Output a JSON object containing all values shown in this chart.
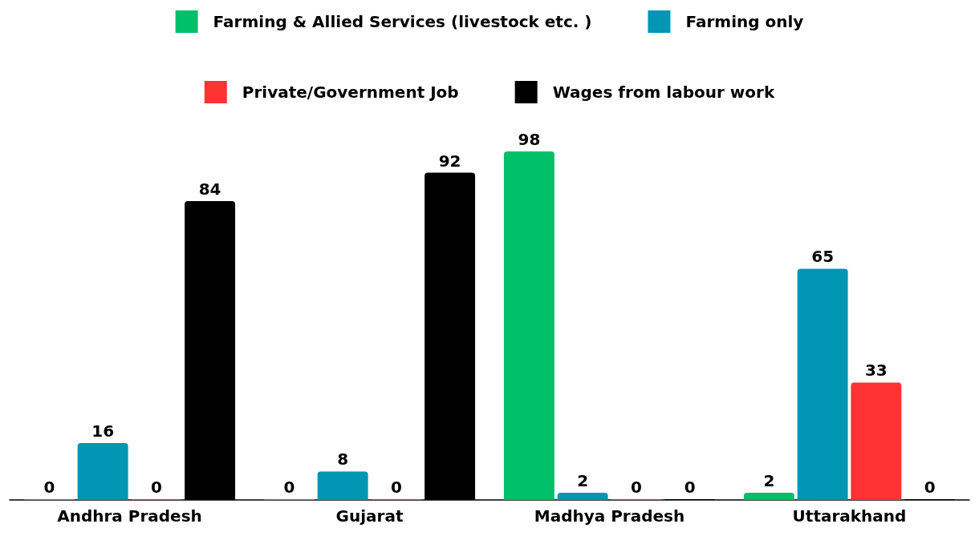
{
  "chart_data": {
    "type": "bar",
    "categories": [
      "Andhra Pradesh",
      "Gujarat",
      "Madhya Pradesh",
      "Uttarakhand"
    ],
    "series": [
      {
        "name": "Farming & Allied Services (livestock etc. )",
        "color": "#00c06a",
        "values": [
          0,
          0,
          98,
          2
        ]
      },
      {
        "name": "Farming only",
        "color": "#0096b4",
        "values": [
          16,
          8,
          2,
          65
        ]
      },
      {
        "name": "Private/Government Job",
        "color": "#ff3333",
        "values": [
          0,
          0,
          0,
          33
        ]
      },
      {
        "name": "Wages from labour work",
        "color": "#000000",
        "values": [
          84,
          92,
          0,
          0
        ]
      }
    ],
    "data_labels": true,
    "legend": "top"
  }
}
